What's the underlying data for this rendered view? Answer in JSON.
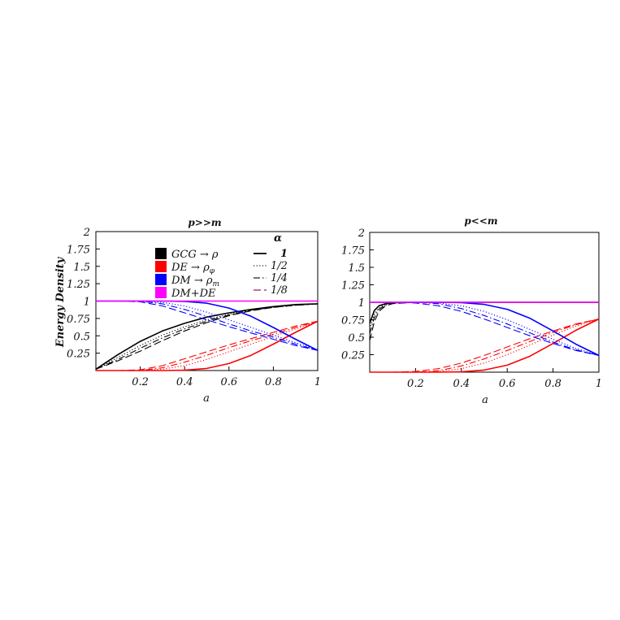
{
  "chart_data": [
    {
      "type": "line",
      "title": "p>>m",
      "xlabel": "a",
      "ylabel": "Energy Density",
      "xlim": [
        0,
        1
      ],
      "ylim": [
        0,
        2
      ],
      "xticks": [
        "0.2",
        "0.4",
        "0.6",
        "0.8",
        "1"
      ],
      "yticks": [
        "0.25",
        "0.5",
        "0.75",
        "1",
        "1.25",
        "1.5",
        "1.75",
        "2"
      ],
      "grid": false,
      "legend": {
        "position": "top",
        "components": [
          {
            "label": "GCG → ρ",
            "color": "#000000",
            "base": "GCG → ρ",
            "sub": ""
          },
          {
            "label": "DE → ρφ",
            "color": "#ff0000",
            "base": "DE → ρ",
            "sub": "φ"
          },
          {
            "label": "DM → ρm",
            "color": "#0000ff",
            "base": "DM → ρ",
            "sub": "m"
          },
          {
            "label": "DM+DE",
            "color": "#ff00ff",
            "base": "DM+DE",
            "sub": ""
          }
        ],
        "alpha_title": "α",
        "alpha": [
          {
            "label": "1",
            "dash": "solid"
          },
          {
            "label": "1/2",
            "dash": "dotted"
          },
          {
            "label": "1/4",
            "dash": "dashdot"
          },
          {
            "label": "1/8",
            "dash": "dashed"
          }
        ]
      },
      "x": [
        0.0,
        0.1,
        0.2,
        0.3,
        0.4,
        0.5,
        0.6,
        0.7,
        0.8,
        0.9,
        1.0
      ],
      "series": [
        {
          "component": "GCG",
          "alpha": "1",
          "color": "#000000",
          "dash": "solid",
          "y": [
            0.02,
            0.23,
            0.42,
            0.57,
            0.68,
            0.77,
            0.83,
            0.88,
            0.92,
            0.95,
            0.96
          ]
        },
        {
          "component": "GCG",
          "alpha": "1/2",
          "color": "#000000",
          "dash": "dotted",
          "y": [
            0.02,
            0.19,
            0.36,
            0.51,
            0.63,
            0.73,
            0.81,
            0.87,
            0.91,
            0.94,
            0.96
          ]
        },
        {
          "component": "GCG",
          "alpha": "1/4",
          "color": "#000000",
          "dash": "dashdot",
          "y": [
            0.02,
            0.16,
            0.32,
            0.47,
            0.6,
            0.71,
            0.8,
            0.87,
            0.91,
            0.94,
            0.96
          ]
        },
        {
          "component": "GCG",
          "alpha": "1/8",
          "color": "#000000",
          "dash": "dashed",
          "y": [
            0.02,
            0.14,
            0.28,
            0.43,
            0.57,
            0.69,
            0.79,
            0.86,
            0.91,
            0.94,
            0.96
          ]
        },
        {
          "component": "DE",
          "alpha": "1",
          "color": "#ff0000",
          "dash": "solid",
          "y": [
            0.0,
            0.0,
            0.0,
            0.0,
            0.005,
            0.03,
            0.1,
            0.22,
            0.38,
            0.55,
            0.71
          ]
        },
        {
          "component": "DE",
          "alpha": "1/2",
          "color": "#ff0000",
          "dash": "dotted",
          "y": [
            0.0,
            0.0,
            0.0,
            0.02,
            0.07,
            0.16,
            0.27,
            0.38,
            0.49,
            0.6,
            0.7
          ]
        },
        {
          "component": "DE",
          "alpha": "1/4",
          "color": "#ff0000",
          "dash": "dashdot",
          "y": [
            0.0,
            0.0,
            0.0,
            0.04,
            0.12,
            0.22,
            0.33,
            0.43,
            0.52,
            0.62,
            0.71
          ]
        },
        {
          "component": "DE",
          "alpha": "1/8",
          "color": "#ff0000",
          "dash": "dashed",
          "y": [
            0.0,
            0.0,
            0.01,
            0.07,
            0.17,
            0.27,
            0.37,
            0.46,
            0.55,
            0.64,
            0.71
          ]
        },
        {
          "component": "DM",
          "alpha": "1",
          "color": "#0000ff",
          "dash": "solid",
          "y": [
            1.0,
            1.0,
            1.0,
            1.0,
            0.995,
            0.97,
            0.9,
            0.78,
            0.62,
            0.45,
            0.29
          ]
        },
        {
          "component": "DM",
          "alpha": "1/2",
          "color": "#0000ff",
          "dash": "dotted",
          "y": [
            1.0,
            1.0,
            1.0,
            0.98,
            0.93,
            0.84,
            0.73,
            0.62,
            0.51,
            0.4,
            0.3
          ]
        },
        {
          "component": "DM",
          "alpha": "1/4",
          "color": "#0000ff",
          "dash": "dashdot",
          "y": [
            1.0,
            1.0,
            1.0,
            0.96,
            0.88,
            0.78,
            0.67,
            0.57,
            0.48,
            0.38,
            0.29
          ]
        },
        {
          "component": "DM",
          "alpha": "1/8",
          "color": "#0000ff",
          "dash": "dashed",
          "y": [
            1.0,
            1.0,
            0.99,
            0.93,
            0.83,
            0.73,
            0.63,
            0.54,
            0.45,
            0.36,
            0.29
          ]
        },
        {
          "component": "DM+DE",
          "alpha": "all",
          "color": "#ff00ff",
          "dash": "solid",
          "y": [
            1.0,
            1.0,
            1.0,
            1.0,
            1.0,
            1.0,
            1.0,
            1.0,
            1.0,
            1.0,
            1.0
          ]
        }
      ]
    },
    {
      "type": "line",
      "title": "p<<m",
      "xlabel": "a",
      "ylabel": "",
      "xlim": [
        0,
        1
      ],
      "ylim": [
        0,
        2
      ],
      "xticks": [
        "0.2",
        "0.4",
        "0.6",
        "0.8",
        "1"
      ],
      "yticks": [
        "0.25",
        "0.5",
        "0.75",
        "1",
        "1.25",
        "1.5",
        "1.75",
        "2"
      ],
      "grid": false,
      "x": [
        0.0,
        0.02,
        0.04,
        0.07,
        0.1,
        0.2,
        0.3,
        0.4,
        0.5,
        0.6,
        0.7,
        0.8,
        0.9,
        1.0
      ],
      "series": [
        {
          "component": "GCG",
          "alpha": "1",
          "color": "#000000",
          "dash": "solid",
          "y": [
            0.7,
            0.88,
            0.95,
            0.98,
            0.995,
            1.0,
            1.0,
            1.0,
            1.0,
            1.0,
            1.0,
            1.0,
            1.0,
            1.0
          ]
        },
        {
          "component": "GCG",
          "alpha": "1/2",
          "color": "#000000",
          "dash": "dotted",
          "y": [
            0.62,
            0.83,
            0.92,
            0.97,
            0.99,
            1.0,
            1.0,
            1.0,
            1.0,
            1.0,
            1.0,
            1.0,
            1.0,
            1.0
          ]
        },
        {
          "component": "GCG",
          "alpha": "1/4",
          "color": "#000000",
          "dash": "dashdot",
          "y": [
            0.55,
            0.78,
            0.9,
            0.96,
            0.985,
            1.0,
            1.0,
            1.0,
            1.0,
            1.0,
            1.0,
            1.0,
            1.0,
            1.0
          ]
        },
        {
          "component": "GCG",
          "alpha": "1/8",
          "color": "#000000",
          "dash": "dashed",
          "y": [
            0.45,
            0.72,
            0.87,
            0.95,
            0.98,
            1.0,
            1.0,
            1.0,
            1.0,
            1.0,
            1.0,
            1.0,
            1.0,
            1.0
          ]
        },
        {
          "component": "DE",
          "alpha": "1",
          "color": "#ff0000",
          "dash": "solid",
          "y": [
            0.0,
            0.0,
            0.0,
            0.0,
            0.0,
            0.0,
            0.0,
            0.005,
            0.03,
            0.1,
            0.23,
            0.41,
            0.6,
            0.76
          ]
        },
        {
          "component": "DE",
          "alpha": "1/2",
          "color": "#ff0000",
          "dash": "dotted",
          "y": [
            0.0,
            0.0,
            0.0,
            0.0,
            0.0,
            0.0,
            0.01,
            0.05,
            0.13,
            0.25,
            0.39,
            0.53,
            0.66,
            0.76
          ]
        },
        {
          "component": "DE",
          "alpha": "1/4",
          "color": "#ff0000",
          "dash": "dashdot",
          "y": [
            0.0,
            0.0,
            0.0,
            0.0,
            0.0,
            0.0,
            0.02,
            0.09,
            0.19,
            0.31,
            0.44,
            0.57,
            0.68,
            0.76
          ]
        },
        {
          "component": "DE",
          "alpha": "1/8",
          "color": "#ff0000",
          "dash": "dashed",
          "y": [
            0.0,
            0.0,
            0.0,
            0.0,
            0.0,
            0.01,
            0.05,
            0.13,
            0.24,
            0.36,
            0.48,
            0.59,
            0.69,
            0.76
          ]
        },
        {
          "component": "DM",
          "alpha": "1",
          "color": "#0000ff",
          "dash": "solid",
          "y": [
            1.0,
            1.0,
            1.0,
            1.0,
            1.0,
            1.0,
            1.0,
            0.995,
            0.97,
            0.9,
            0.77,
            0.59,
            0.4,
            0.24
          ]
        },
        {
          "component": "DM",
          "alpha": "1/2",
          "color": "#0000ff",
          "dash": "dotted",
          "y": [
            1.0,
            1.0,
            1.0,
            1.0,
            1.0,
            1.0,
            0.99,
            0.95,
            0.87,
            0.75,
            0.61,
            0.47,
            0.34,
            0.24
          ]
        },
        {
          "component": "DM",
          "alpha": "1/4",
          "color": "#0000ff",
          "dash": "dashdot",
          "y": [
            1.0,
            1.0,
            1.0,
            1.0,
            1.0,
            1.0,
            0.98,
            0.91,
            0.81,
            0.69,
            0.56,
            0.43,
            0.32,
            0.24
          ]
        },
        {
          "component": "DM",
          "alpha": "1/8",
          "color": "#0000ff",
          "dash": "dashed",
          "y": [
            1.0,
            1.0,
            1.0,
            1.0,
            1.0,
            0.99,
            0.95,
            0.87,
            0.76,
            0.64,
            0.52,
            0.41,
            0.31,
            0.24
          ]
        },
        {
          "component": "DM+DE",
          "alpha": "all",
          "color": "#ff00ff",
          "dash": "solid",
          "y": [
            1.0,
            1.0,
            1.0,
            1.0,
            1.0,
            1.0,
            1.0,
            1.0,
            1.0,
            1.0,
            1.0,
            1.0,
            1.0,
            1.0
          ]
        }
      ]
    }
  ]
}
